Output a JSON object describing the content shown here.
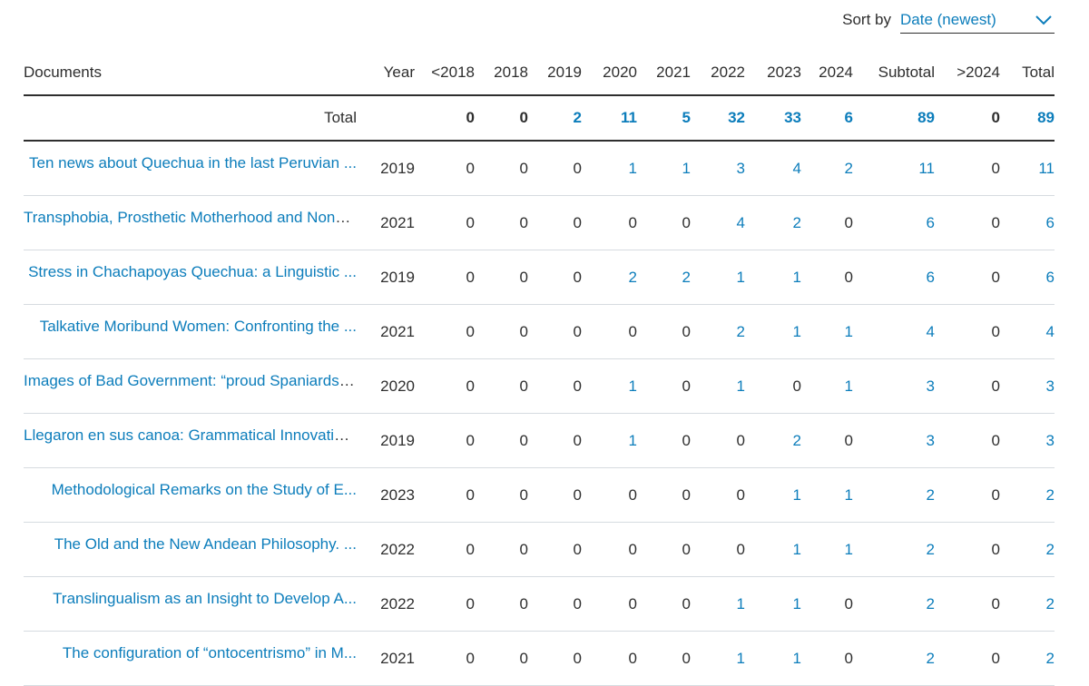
{
  "sort": {
    "label": "Sort by",
    "selected": "Date (newest)"
  },
  "table": {
    "headers": [
      "Documents",
      "Year",
      "<2018",
      "2018",
      "2019",
      "2020",
      "2021",
      "2022",
      "2023",
      "2024",
      "Subtotal",
      ">2024",
      "Total"
    ],
    "total_row": {
      "label": "Total",
      "year": "",
      "values": [
        "0",
        "0",
        "2",
        "11",
        "5",
        "32",
        "33",
        "6",
        "89",
        "0",
        "89"
      ]
    },
    "rows": [
      {
        "title": "Ten news about Quechua in the last Peruvian ...",
        "year": "2019",
        "values": [
          "0",
          "0",
          "0",
          "1",
          "1",
          "3",
          "4",
          "2",
          "11",
          "0",
          "11"
        ]
      },
      {
        "title": "Transphobia, Prosthetic Motherhood and Nonbinary ...",
        "year": "2021",
        "values": [
          "0",
          "0",
          "0",
          "0",
          "0",
          "4",
          "2",
          "0",
          "6",
          "0",
          "6"
        ]
      },
      {
        "title": "Stress in Chachapoyas Quechua: a Linguistic ...",
        "year": "2019",
        "values": [
          "0",
          "0",
          "0",
          "2",
          "2",
          "1",
          "1",
          "0",
          "6",
          "0",
          "6"
        ]
      },
      {
        "title": "Talkative Moribund Women: Confronting the ...",
        "year": "2021",
        "values": [
          "0",
          "0",
          "0",
          "0",
          "0",
          "2",
          "1",
          "1",
          "4",
          "0",
          "4"
        ]
      },
      {
        "title": "Images of Bad Government: “proud Spaniards” ...",
        "year": "2020",
        "values": [
          "0",
          "0",
          "0",
          "1",
          "0",
          "1",
          "0",
          "1",
          "3",
          "0",
          "3"
        ]
      },
      {
        "title": "Llegaron en sus canoa: Grammatical Innovation ...",
        "year": "2019",
        "values": [
          "0",
          "0",
          "0",
          "1",
          "0",
          "0",
          "2",
          "0",
          "3",
          "0",
          "3"
        ]
      },
      {
        "title": "Methodological Remarks on the Study of E...",
        "year": "2023",
        "values": [
          "0",
          "0",
          "0",
          "0",
          "0",
          "0",
          "1",
          "1",
          "2",
          "0",
          "2"
        ]
      },
      {
        "title": "The Old and the New Andean Philosophy. ...",
        "year": "2022",
        "values": [
          "0",
          "0",
          "0",
          "0",
          "0",
          "0",
          "1",
          "1",
          "2",
          "0",
          "2"
        ]
      },
      {
        "title": "Translingualism as an Insight to Develop A...",
        "year": "2022",
        "values": [
          "0",
          "0",
          "0",
          "0",
          "0",
          "1",
          "1",
          "0",
          "2",
          "0",
          "2"
        ]
      },
      {
        "title": "The configuration of “ontocentrismo” in M...",
        "year": "2021",
        "values": [
          "0",
          "0",
          "0",
          "0",
          "0",
          "1",
          "1",
          "0",
          "2",
          "0",
          "2"
        ]
      }
    ]
  },
  "colors": {
    "link": "#0c7dbb",
    "text": "#2e2e2e",
    "divider": "#d6dbe0"
  },
  "icons": {
    "sort_dropdown": "chevron-down-icon"
  }
}
